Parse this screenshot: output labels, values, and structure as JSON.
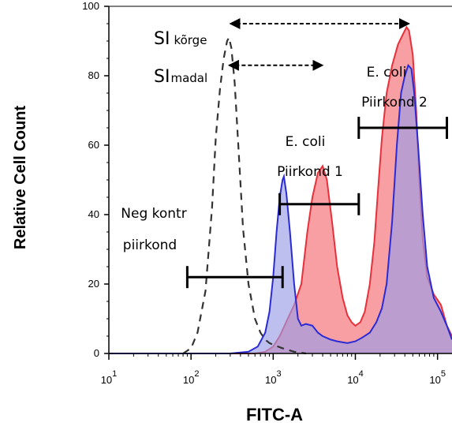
{
  "chart_data": {
    "type": "area",
    "title": "",
    "xlabel": "FITC-A",
    "ylabel": "Relative Cell Count",
    "x_scale": "log",
    "xlim": [
      10,
      150000
    ],
    "ylim": [
      0,
      100
    ],
    "x_ticks": [
      {
        "value": 10,
        "base": "10",
        "exp": "1"
      },
      {
        "value": 100,
        "base": "10",
        "exp": "2"
      },
      {
        "value": 1000,
        "base": "10",
        "exp": "3"
      },
      {
        "value": 10000,
        "base": "10",
        "exp": "4"
      },
      {
        "value": 100000,
        "base": "10",
        "exp": "5"
      }
    ],
    "y_ticks": [
      "0",
      "20",
      "40",
      "60",
      "80",
      "100"
    ],
    "grid": false,
    "series": [
      {
        "color": "#e8303a",
        "fill": "#f56b72",
        "style": "filled",
        "points": [
          [
            10,
            0
          ],
          [
            600,
            0
          ],
          [
            800,
            0.5
          ],
          [
            1000,
            2
          ],
          [
            1200,
            5
          ],
          [
            1500,
            10
          ],
          [
            1800,
            14
          ],
          [
            2200,
            20
          ],
          [
            2600,
            35
          ],
          [
            3000,
            45
          ],
          [
            3500,
            52
          ],
          [
            4000,
            54
          ],
          [
            4500,
            50
          ],
          [
            5200,
            38
          ],
          [
            6000,
            25
          ],
          [
            7000,
            16
          ],
          [
            8000,
            11
          ],
          [
            9000,
            9
          ],
          [
            10000,
            8
          ],
          [
            11500,
            9
          ],
          [
            13000,
            12
          ],
          [
            15000,
            20
          ],
          [
            17000,
            32
          ],
          [
            19000,
            48
          ],
          [
            21000,
            62
          ],
          [
            24000,
            75
          ],
          [
            28000,
            83
          ],
          [
            33000,
            89
          ],
          [
            38000,
            92
          ],
          [
            42000,
            94
          ],
          [
            45000,
            93
          ],
          [
            50000,
            86
          ],
          [
            55000,
            70
          ],
          [
            60000,
            50
          ],
          [
            66000,
            33
          ],
          [
            75000,
            22
          ],
          [
            90000,
            17
          ],
          [
            110000,
            14
          ],
          [
            130000,
            8
          ],
          [
            150000,
            5
          ]
        ]
      },
      {
        "color": "#2b2bd6",
        "fill": "#9a9ce6",
        "style": "filled",
        "points": [
          [
            10,
            0
          ],
          [
            300,
            0
          ],
          [
            500,
            0.5
          ],
          [
            650,
            2
          ],
          [
            800,
            6
          ],
          [
            900,
            12
          ],
          [
            1000,
            22
          ],
          [
            1100,
            35
          ],
          [
            1200,
            45
          ],
          [
            1300,
            50
          ],
          [
            1350,
            51
          ],
          [
            1450,
            46
          ],
          [
            1600,
            35
          ],
          [
            1800,
            20
          ],
          [
            2000,
            10
          ],
          [
            2200,
            8
          ],
          [
            2500,
            8.5
          ],
          [
            3000,
            8
          ],
          [
            3500,
            6
          ],
          [
            4000,
            5
          ],
          [
            5000,
            4
          ],
          [
            6000,
            3.5
          ],
          [
            8000,
            3
          ],
          [
            10000,
            3.5
          ],
          [
            12000,
            4.5
          ],
          [
            15000,
            6
          ],
          [
            18000,
            9
          ],
          [
            21000,
            13
          ],
          [
            24000,
            20
          ],
          [
            28000,
            38
          ],
          [
            32000,
            60
          ],
          [
            36000,
            75
          ],
          [
            40000,
            80
          ],
          [
            44000,
            83
          ],
          [
            48000,
            82
          ],
          [
            52000,
            75
          ],
          [
            58000,
            60
          ],
          [
            66000,
            40
          ],
          [
            75000,
            25
          ],
          [
            90000,
            16
          ],
          [
            110000,
            12
          ],
          [
            130000,
            8
          ],
          [
            150000,
            4
          ]
        ]
      },
      {
        "color": "#333333",
        "style": "dashed",
        "points": [
          [
            80,
            0
          ],
          [
            100,
            1.5
          ],
          [
            120,
            6
          ],
          [
            150,
            18
          ],
          [
            180,
            42
          ],
          [
            200,
            62
          ],
          [
            225,
            76
          ],
          [
            250,
            85
          ],
          [
            275,
            90
          ],
          [
            290,
            91
          ],
          [
            310,
            88
          ],
          [
            340,
            78
          ],
          [
            380,
            58
          ],
          [
            430,
            36
          ],
          [
            500,
            20
          ],
          [
            600,
            10
          ],
          [
            700,
            6
          ],
          [
            800,
            4
          ],
          [
            900,
            3
          ],
          [
            1000,
            2.5
          ],
          [
            1300,
            1.5
          ],
          [
            1800,
            0.5
          ],
          [
            2500,
            0
          ]
        ]
      }
    ],
    "gates": [
      {
        "x1": 90,
        "x2": 1300,
        "y": 22,
        "label_lines": [
          "Neg kontr",
          "piirkond"
        ]
      },
      {
        "x1": 1200,
        "x2": 11000,
        "y": 43,
        "label_lines": [
          "E. coli",
          "Piirkond 1"
        ]
      },
      {
        "x1": 11000,
        "x2": 130000,
        "y": 65,
        "label_lines": [
          "E. coli",
          "Piirkond 2"
        ]
      }
    ],
    "annotations": [
      {
        "main": "SI",
        "sub": "kõrge",
        "x1": 300,
        "x2": 45000,
        "y": 95
      },
      {
        "main": "SI",
        "sub": "madal",
        "x1": 290,
        "x2": 4000,
        "y": 83
      }
    ]
  }
}
